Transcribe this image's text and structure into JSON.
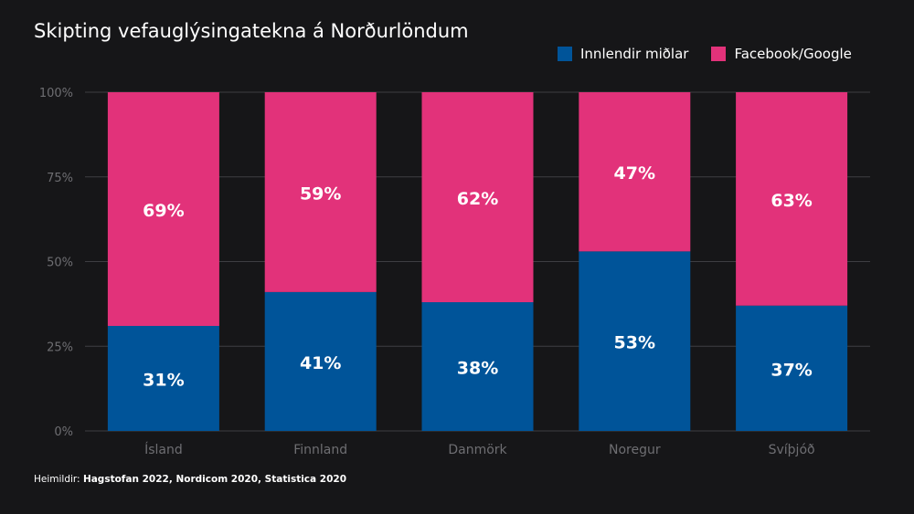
{
  "title": "Skipting vefauglýsingatekna á Norðurlöndum",
  "source": {
    "prefix": "Heimildir: ",
    "text": "Hagstofan 2022, Nordicom 2020,  Statistica 2020"
  },
  "colors": {
    "background": "#161618",
    "domestic": "#005499",
    "facebook_google": "#e2327a",
    "grid": "#3e3e42",
    "tick_text": "#6e6e72",
    "label_text": "#ffffff"
  },
  "chart_data": {
    "type": "bar",
    "stacked": true,
    "title": "Skipting vefauglýsingatekna á Norðurlöndum",
    "categories": [
      "Ísland",
      "Finnland",
      "Danmörk",
      "Noregur",
      "Svíþjóð"
    ],
    "series": [
      {
        "name": "Innlendir miðlar",
        "values": [
          31,
          41,
          38,
          53,
          37
        ],
        "labels": [
          "31%",
          "41%",
          "38%",
          "53%",
          "37%"
        ]
      },
      {
        "name": "Facebook/Google",
        "values": [
          69,
          59,
          62,
          47,
          63
        ],
        "labels": [
          "69%",
          "59%",
          "62%",
          "47%",
          "63%"
        ]
      }
    ],
    "yticks": [
      "0%",
      "25%",
      "50%",
      "75%",
      "100%"
    ],
    "ylim": [
      0,
      100
    ],
    "grid": true,
    "legend_position": "top-right"
  }
}
